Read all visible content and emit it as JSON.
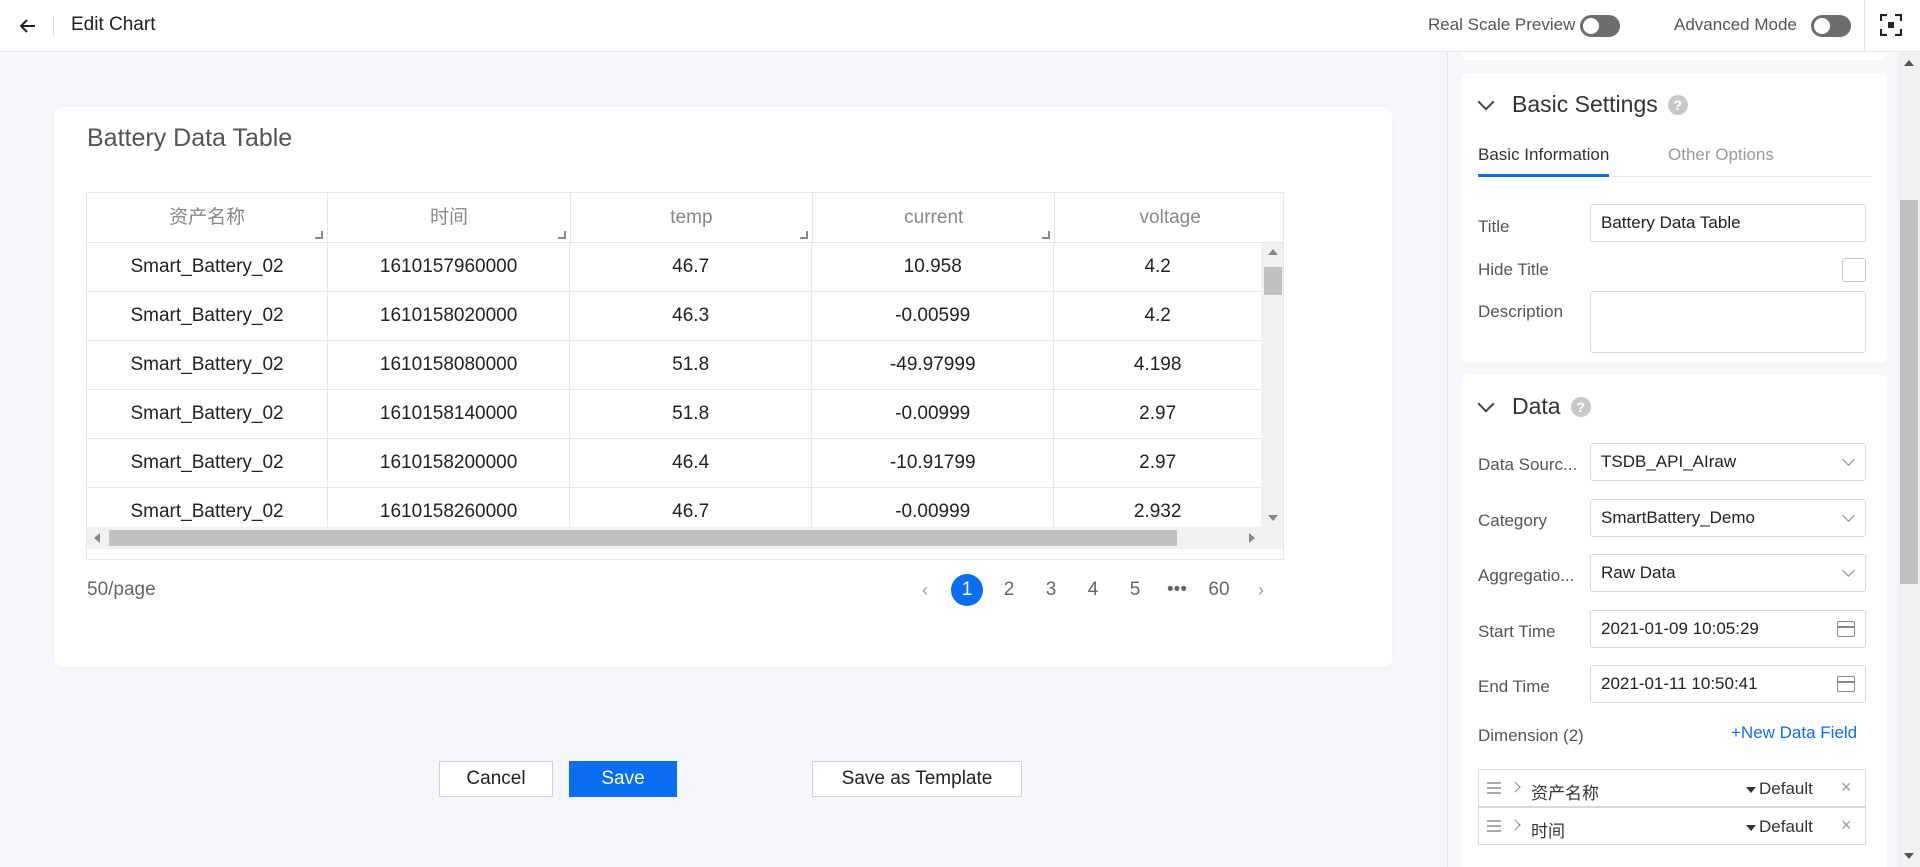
{
  "header": {
    "title": "Edit Chart",
    "real_scale_label": "Real Scale Preview",
    "advanced_label": "Advanced Mode",
    "back_icon": "arrow-left-icon",
    "fullscreen_icon": "fullscreen-icon"
  },
  "chart": {
    "title": "Battery Data Table",
    "columns": [
      "资产名称",
      "时间",
      "temp",
      "current",
      "voltage"
    ],
    "rows": [
      [
        "Smart_Battery_02",
        "1610157960000",
        "46.7",
        "10.958",
        "4.2"
      ],
      [
        "Smart_Battery_02",
        "1610158020000",
        "46.3",
        "-0.00599",
        "4.2"
      ],
      [
        "Smart_Battery_02",
        "1610158080000",
        "51.8",
        "-49.97999",
        "4.198"
      ],
      [
        "Smart_Battery_02",
        "1610158140000",
        "51.8",
        "-0.00999",
        "2.97"
      ],
      [
        "Smart_Battery_02",
        "1610158200000",
        "46.4",
        "-10.91799",
        "2.97"
      ],
      [
        "Smart_Battery_02",
        "1610158260000",
        "46.7",
        "-0.00999",
        "2.932"
      ]
    ],
    "page_size": "50/page",
    "pages": [
      "1",
      "2",
      "3",
      "4",
      "5",
      "•••",
      "60"
    ],
    "current_page": "1"
  },
  "actions": {
    "cancel": "Cancel",
    "save": "Save",
    "save_template": "Save as Template"
  },
  "basic_settings": {
    "title": "Basic Settings",
    "help": "?",
    "tabs": [
      "Basic Information",
      "Other Options"
    ],
    "title_label": "Title",
    "title_value": "Battery Data Table",
    "hide_title_label": "Hide Title",
    "description_label": "Description",
    "description_value": ""
  },
  "data_section": {
    "title": "Data",
    "help": "?",
    "source_label": "Data Sourc...",
    "source_value": "TSDB_API_AIraw",
    "category_label": "Category",
    "category_value": "SmartBattery_Demo",
    "aggregation_label": "Aggregatio...",
    "aggregation_value": "Raw Data",
    "start_label": "Start Time",
    "start_value": "2021-01-09 10:05:29",
    "end_label": "End Time",
    "end_value": "2021-01-11 10:50:41",
    "dimension_label": "Dimension (2)",
    "new_field": "+New Data Field",
    "dimensions": [
      {
        "name": "资产名称",
        "agg": "Default",
        "close": "×"
      },
      {
        "name": "时间",
        "agg": "Default",
        "close": "×"
      }
    ]
  },
  "colors": {
    "primary": "#0a6ef3",
    "switch_off": "#6e6e6e"
  }
}
